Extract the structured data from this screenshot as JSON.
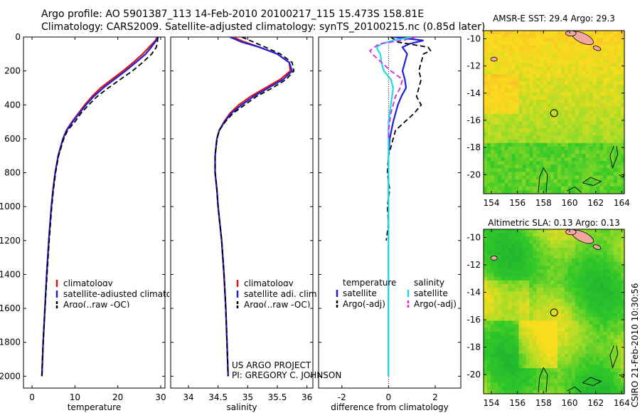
{
  "title": {
    "line1": "Argo profile: AO 5901387_113 14-Feb-2010 20100217_115 15.473S 158.81E",
    "line2": "Climatology: CARS2009. Satellite-adjusted climatology: synTS_20100215.nc (0.85d later)"
  },
  "credit": "CSIRO 21-Feb-2010 10:30:56",
  "project": {
    "line1": "US ARGO PROJECT",
    "line2": "PI: GREGORY C. JOHNSON"
  },
  "colors": {
    "climatology": "#e01010",
    "satellite": "#1f1fd8",
    "argo": "#000000",
    "satellite_diff": "#22d8e8",
    "argo_adj_salinity": "#dd22dd",
    "marker": "#000000"
  },
  "chart_data": [
    {
      "type": "line",
      "name": "temperature-profile",
      "xlabel": "temperature",
      "ylabel": "",
      "xlim": [
        -2,
        31
      ],
      "ylim": [
        2070,
        0
      ],
      "x_ticks": [
        0,
        10,
        20,
        30
      ],
      "y_ticks": [
        0,
        200,
        400,
        600,
        800,
        1000,
        1200,
        1400,
        1600,
        1800,
        2000
      ],
      "legend": [
        "climatology",
        "satellite-adjusted climatology",
        "Argo(..raw -QC)"
      ],
      "legend_position": "lower-center",
      "series": [
        {
          "name": "climatology",
          "style": "solid",
          "color_key": "climatology",
          "depth": [
            0,
            20,
            60,
            100,
            150,
            200,
            250,
            300,
            350,
            400,
            450,
            500,
            550,
            600,
            700,
            800,
            900,
            1000,
            1200,
            1400,
            1600,
            1800,
            2000
          ],
          "values": [
            29.2,
            28.8,
            27.3,
            25.8,
            23.6,
            21.2,
            18.6,
            16.0,
            14.0,
            12.3,
            10.8,
            9.3,
            8.0,
            7.2,
            6.1,
            5.4,
            4.9,
            4.5,
            3.9,
            3.4,
            3.0,
            2.6,
            2.3
          ]
        },
        {
          "name": "satellite-adjusted climatology",
          "style": "solid",
          "color_key": "satellite",
          "depth": [
            0,
            20,
            60,
            100,
            150,
            200,
            250,
            300,
            350,
            400,
            450,
            500,
            550,
            600,
            700,
            800,
            900,
            1000,
            1200,
            1400,
            1600,
            1800,
            2000
          ],
          "values": [
            29.4,
            29.0,
            27.8,
            26.5,
            24.2,
            21.8,
            19.2,
            16.6,
            14.4,
            12.6,
            11.0,
            9.5,
            8.1,
            7.2,
            6.1,
            5.4,
            4.9,
            4.5,
            3.9,
            3.4,
            3.0,
            2.6,
            2.3
          ]
        },
        {
          "name": "Argo(..raw -QC)",
          "style": "dashed",
          "color_key": "argo",
          "depth": [
            0,
            20,
            60,
            100,
            150,
            200,
            250,
            300,
            350,
            400,
            450,
            500,
            550,
            600,
            700,
            800,
            900,
            1000,
            1200,
            1400,
            1600,
            1800,
            2000
          ],
          "values": [
            29.3,
            29.3,
            29.0,
            27.9,
            25.8,
            23.4,
            20.6,
            17.8,
            15.2,
            13.2,
            11.4,
            10.0,
            8.3,
            7.4,
            6.2,
            5.5,
            5.0,
            4.6,
            4.0,
            3.5,
            3.0,
            2.6,
            2.3
          ]
        }
      ]
    },
    {
      "type": "line",
      "name": "salinity-profile",
      "xlabel": "salinity",
      "ylabel": "",
      "xlim": [
        33.7,
        36.1
      ],
      "ylim": [
        2070,
        0
      ],
      "x_ticks": [
        34,
        34.5,
        35,
        35.5,
        36
      ],
      "y_ticks": [
        0,
        200,
        400,
        600,
        800,
        1000,
        1200,
        1400,
        1600,
        1800,
        2000
      ],
      "legend": [
        "climatology",
        "satellite adj. clim.",
        "Argo(..raw -QC)"
      ],
      "legend_position": "lower-center",
      "series": [
        {
          "name": "climatology",
          "style": "solid",
          "color_key": "climatology",
          "depth": [
            0,
            30,
            60,
            100,
            150,
            200,
            250,
            300,
            350,
            400,
            450,
            500,
            550,
            600,
            700,
            800,
            900,
            1000,
            1200,
            1400,
            1600,
            1800,
            2000
          ],
          "values": [
            34.75,
            34.95,
            35.2,
            35.5,
            35.7,
            35.72,
            35.55,
            35.3,
            35.05,
            34.85,
            34.7,
            34.6,
            34.52,
            34.48,
            34.45,
            34.45,
            34.48,
            34.5,
            34.56,
            34.6,
            34.63,
            34.65,
            34.67
          ]
        },
        {
          "name": "satellite adj. clim.",
          "style": "solid",
          "color_key": "satellite",
          "depth": [
            0,
            30,
            60,
            100,
            150,
            200,
            250,
            300,
            350,
            400,
            450,
            500,
            550,
            600,
            700,
            800,
            900,
            1000,
            1200,
            1400,
            1600,
            1800,
            2000
          ],
          "values": [
            34.7,
            34.9,
            35.2,
            35.5,
            35.7,
            35.75,
            35.6,
            35.35,
            35.1,
            34.9,
            34.72,
            34.61,
            34.52,
            34.48,
            34.45,
            34.45,
            34.48,
            34.5,
            34.56,
            34.6,
            34.63,
            34.65,
            34.67
          ]
        },
        {
          "name": "Argo(..raw -QC)",
          "style": "dashed",
          "color_key": "argo",
          "depth": [
            0,
            30,
            60,
            100,
            150,
            200,
            250,
            300,
            350,
            400,
            450,
            500,
            550,
            600,
            700,
            800,
            900,
            1000,
            1200,
            1400,
            1600,
            1800,
            2000
          ],
          "values": [
            34.9,
            35.1,
            35.3,
            35.55,
            35.75,
            35.78,
            35.65,
            35.42,
            35.15,
            34.95,
            34.75,
            34.62,
            34.52,
            34.48,
            34.45,
            34.45,
            34.48,
            34.5,
            34.56,
            34.6,
            34.63,
            34.65,
            34.67
          ]
        }
      ]
    },
    {
      "type": "line",
      "name": "difference-profile",
      "xlabel": "difference from climatology",
      "ylabel": "",
      "xlim": [
        -3,
        3.1
      ],
      "ylim": [
        2070,
        0
      ],
      "x_ticks": [
        -2,
        0,
        2
      ],
      "y_ticks": [
        0,
        200,
        400,
        600,
        800,
        1000,
        1200,
        1400,
        1600,
        1800,
        2000
      ],
      "legend_headers": [
        "temperature",
        "salinity"
      ],
      "legend": [
        "satellite",
        "Argo(-adj)",
        "satellite",
        "Argo(-adj)"
      ],
      "legend_position": "lower-center",
      "series": [
        {
          "name": "temperature satellite",
          "style": "solid",
          "color_key": "satellite",
          "depth": [
            0,
            20,
            40,
            60,
            80,
            100,
            150,
            200,
            250,
            300,
            350,
            400,
            450,
            500,
            600,
            700,
            800,
            1000,
            2000
          ],
          "values": [
            0.2,
            1.5,
            0.9,
            0.6,
            0.7,
            0.8,
            0.7,
            0.6,
            0.7,
            0.75,
            0.55,
            0.4,
            0.3,
            0.2,
            0.05,
            0.0,
            0.0,
            0.0,
            0.0
          ]
        },
        {
          "name": "temperature Argo(-adj)",
          "style": "dashed",
          "color_key": "argo",
          "depth": [
            0,
            30,
            60,
            80,
            100,
            150,
            200,
            250,
            300,
            350,
            400,
            450,
            500,
            550,
            600,
            650,
            700,
            800,
            900,
            1000,
            1100,
            1200
          ],
          "values": [
            0.1,
            0.4,
            1.7,
            1.8,
            1.5,
            1.4,
            1.3,
            1.4,
            1.3,
            1.2,
            1.4,
            1.1,
            0.7,
            0.3,
            0.2,
            0.1,
            0.0,
            -0.05,
            0.05,
            -0.05,
            0.0,
            -0.1
          ]
        },
        {
          "name": "salinity satellite",
          "style": "solid",
          "color_key": "satellite_diff",
          "depth": [
            0,
            20,
            40,
            60,
            80,
            100,
            150,
            200,
            250,
            300,
            350,
            400,
            450,
            500,
            600,
            800,
            1000,
            2000
          ],
          "values": [
            1.0,
            0.2,
            -0.3,
            -0.5,
            -0.45,
            -0.35,
            -0.3,
            -0.2,
            0.1,
            0.2,
            0.15,
            0.1,
            0.05,
            0.0,
            0.0,
            0.0,
            0.0,
            0.0
          ]
        },
        {
          "name": "salinity Argo(-adj)",
          "style": "dashed",
          "color_key": "argo_adj_salinity",
          "depth": [
            0,
            20,
            40,
            60,
            80,
            100,
            150,
            200,
            250,
            300,
            350,
            400,
            450,
            500,
            550,
            600
          ],
          "values": [
            1.2,
            0.6,
            -0.4,
            -0.6,
            -0.8,
            -0.7,
            -0.3,
            0.1,
            0.6,
            0.5,
            0.3,
            0.2,
            0.1,
            0.05,
            0.0,
            0.0
          ]
        }
      ]
    },
    {
      "type": "heatmap",
      "name": "sst-map",
      "title_prefix": "AMSR-E SST:",
      "field_value": "29.4",
      "argo_label": "Argo:",
      "argo_value": "29.3",
      "xlim": [
        153.4,
        164.2
      ],
      "ylim": [
        -21.4,
        -9.4
      ],
      "x_ticks": [
        154,
        156,
        158,
        160,
        162,
        164
      ],
      "y_ticks": [
        -10,
        -12,
        -14,
        -16,
        -18,
        -20
      ],
      "marker": {
        "lon": 158.81,
        "lat": -15.47
      }
    },
    {
      "type": "heatmap",
      "name": "sla-map",
      "title_prefix": "Altimetric SLA:",
      "field_value": "0.13",
      "argo_label": "Argo:",
      "argo_value": "0.13",
      "xlim": [
        153.4,
        164.2
      ],
      "ylim": [
        -21.4,
        -9.4
      ],
      "x_ticks": [
        154,
        156,
        158,
        160,
        162,
        164
      ],
      "y_ticks": [
        -10,
        -12,
        -14,
        -16,
        -18,
        -20
      ],
      "marker": {
        "lon": 158.81,
        "lat": -15.47
      }
    }
  ]
}
